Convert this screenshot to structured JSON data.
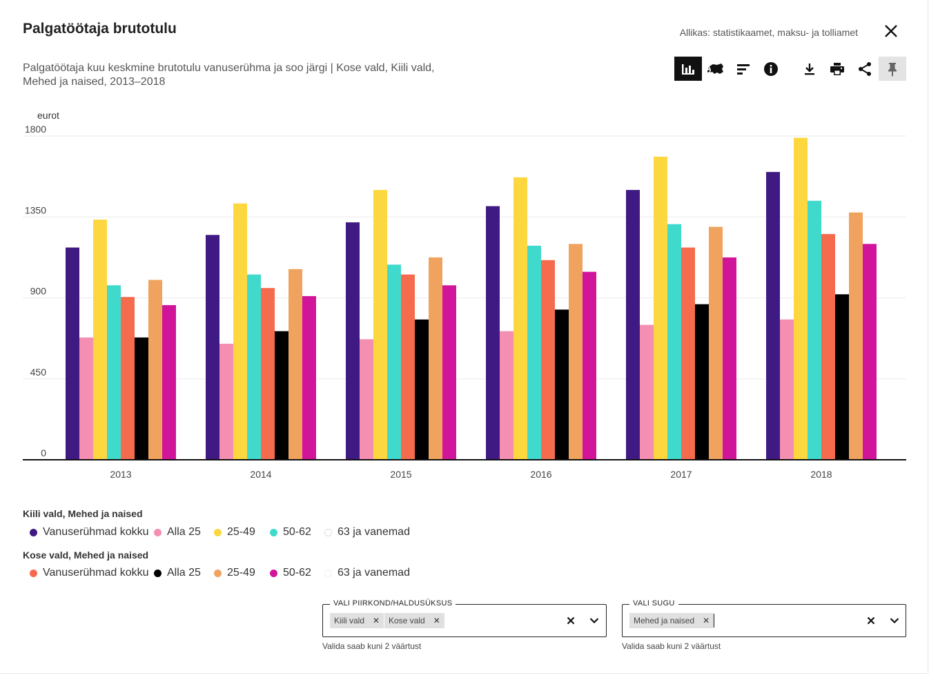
{
  "header": {
    "title": "Palgatöötaja brutotulu",
    "source": "Allikas: statistikaamet, maksu- ja tolliamet",
    "subtitle_line1": "Palgatöötaja kuu keskmine brutotulu vanuserühma ja soo järgi | Kose vald, Kiili vald,",
    "subtitle_line2": "Mehed ja naised, 2013–2018"
  },
  "toolbar": {
    "icons": [
      "bar-chart-icon",
      "map-icon",
      "sort-icon",
      "info-icon",
      "download-icon",
      "print-icon",
      "share-icon",
      "pin-icon"
    ]
  },
  "chart_data": {
    "type": "bar",
    "ylabel": "eurot",
    "ylim": [
      0,
      1800
    ],
    "yticks": [
      0,
      450,
      900,
      1350,
      1800
    ],
    "ytick_labels": [
      "0",
      "450",
      "900",
      "1350",
      "1800"
    ],
    "categories": [
      "2013",
      "2014",
      "2015",
      "2016",
      "2017",
      "2018"
    ],
    "grid": true,
    "series": [
      {
        "name": "Kiili vald, Mehed ja naised — Vanuserühmad kokku",
        "color": "#3f1a82",
        "values": [
          1180,
          1250,
          1320,
          1410,
          1500,
          1600
        ]
      },
      {
        "name": "Kiili vald, Mehed ja naised — Alla 25",
        "color": "#f48fb1",
        "values": [
          680,
          645,
          670,
          715,
          750,
          780
        ]
      },
      {
        "name": "Kiili vald, Mehed ja naised — 25-49",
        "color": "#fdd73f",
        "values": [
          1335,
          1425,
          1500,
          1570,
          1685,
          1790
        ]
      },
      {
        "name": "Kiili vald, Mehed ja naised — 50-62",
        "color": "#40dacc",
        "values": [
          970,
          1030,
          1085,
          1190,
          1310,
          1440
        ]
      },
      {
        "name": "Kose vald, Mehed ja naised — Vanuserühmad kokku",
        "color": "#f56b4e",
        "values": [
          905,
          955,
          1030,
          1110,
          1180,
          1255
        ]
      },
      {
        "name": "Kose vald, Mehed ja naised — Alla 25",
        "color": "#000000",
        "values": [
          680,
          715,
          780,
          835,
          865,
          920
        ]
      },
      {
        "name": "Kose vald, Mehed ja naised — 25-49",
        "color": "#f0a35e",
        "values": [
          1000,
          1060,
          1125,
          1200,
          1295,
          1375
        ]
      },
      {
        "name": "Kose vald, Mehed ja naised — 50-62",
        "color": "#d1159b",
        "values": [
          860,
          910,
          970,
          1045,
          1125,
          1200
        ]
      }
    ]
  },
  "legend": {
    "groups": [
      {
        "title": "Kiili vald, Mehed ja naised",
        "items": [
          {
            "label": "Vanuserühmad kokku",
            "color": "#3f1a82"
          },
          {
            "label": "Alla 25",
            "color": "#f48fb1"
          },
          {
            "label": "25-49",
            "color": "#fdd73f"
          },
          {
            "label": "50-62",
            "color": "#40dacc"
          },
          {
            "label": "63 ja vanemad",
            "color": "#ffffff"
          }
        ]
      },
      {
        "title": "Kose vald, Mehed ja naised",
        "items": [
          {
            "label": "Vanuserühmad kokku",
            "color": "#f56b4e"
          },
          {
            "label": "Alla 25",
            "color": "#000000"
          },
          {
            "label": "25-49",
            "color": "#f0a35e"
          },
          {
            "label": "50-62",
            "color": "#d1159b"
          },
          {
            "label": "63 ja vanemad",
            "color": "#ffffff"
          }
        ]
      }
    ]
  },
  "filters": {
    "region": {
      "label": "VALI PIIRKOND/HALDUSÜKSUS",
      "chips": [
        "Kiili vald",
        "Kose vald"
      ],
      "helper": "Valida saab kuni 2 väärtust"
    },
    "sex": {
      "label": "VALI SUGU",
      "chips": [
        "Mehed ja naised"
      ],
      "helper": "Valida saab kuni 2 väärtust"
    }
  }
}
